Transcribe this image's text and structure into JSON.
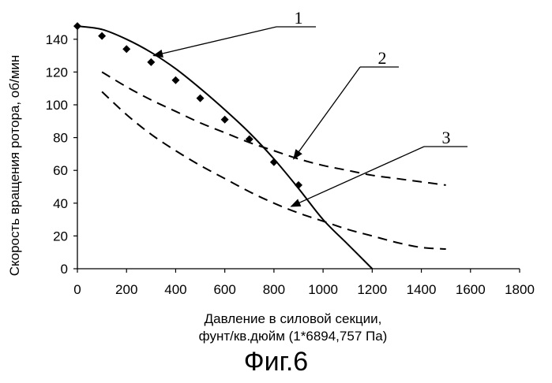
{
  "chart_data": {
    "type": "line",
    "xlabel": "Давление в силовой секции,",
    "xlabel_line2": "фунт/кв.дюйм (1*6894,757 Па)",
    "ylabel": "Скорость вращения ротора, об/мин",
    "xlim": [
      0,
      1800
    ],
    "ylim": [
      0,
      150
    ],
    "xticks": [
      0,
      200,
      400,
      600,
      800,
      1000,
      1200,
      1400,
      1600,
      1800
    ],
    "yticks": [
      0,
      20,
      40,
      60,
      80,
      100,
      120,
      140
    ],
    "grid": false,
    "legend": "none",
    "series": [
      {
        "id": "curve-1",
        "style": "solid",
        "x": [
          0,
          100,
          200,
          300,
          400,
          500,
          600,
          700,
          800,
          900,
          1000,
          1100,
          1200
        ],
        "y": [
          148,
          146,
          140,
          132,
          122,
          110,
          97,
          83,
          67,
          49,
          30,
          15,
          0
        ]
      },
      {
        "id": "markers-1",
        "style": "diamond",
        "x": [
          0,
          100,
          200,
          300,
          400,
          500,
          600,
          700,
          800,
          900
        ],
        "y": [
          148,
          142,
          134,
          126,
          115,
          104,
          91,
          79,
          65,
          51
        ]
      },
      {
        "id": "curve-2",
        "style": "dashed",
        "x": [
          100,
          200,
          300,
          400,
          500,
          600,
          700,
          800,
          900,
          1000,
          1100,
          1200,
          1300,
          1400,
          1500
        ],
        "y": [
          120,
          111,
          103,
          96,
          89,
          83,
          77,
          72,
          67,
          63,
          60,
          57,
          55,
          53,
          51
        ]
      },
      {
        "id": "curve-3",
        "style": "dashed",
        "x": [
          100,
          200,
          300,
          400,
          500,
          600,
          700,
          800,
          900,
          1000,
          1100,
          1200,
          1300,
          1400,
          1500
        ],
        "y": [
          108,
          94,
          82,
          72,
          63,
          55,
          47,
          40,
          34,
          29,
          24,
          20,
          16,
          13,
          12
        ]
      }
    ],
    "annotations": [
      {
        "label": "1",
        "series": "curve-1",
        "x": 310,
        "y": 130
      },
      {
        "label": "2",
        "series": "curve-2",
        "x": 880,
        "y": 67
      },
      {
        "label": "3",
        "series": "curve-3",
        "x": 870,
        "y": 38
      }
    ]
  },
  "caption": "Фиг.6"
}
